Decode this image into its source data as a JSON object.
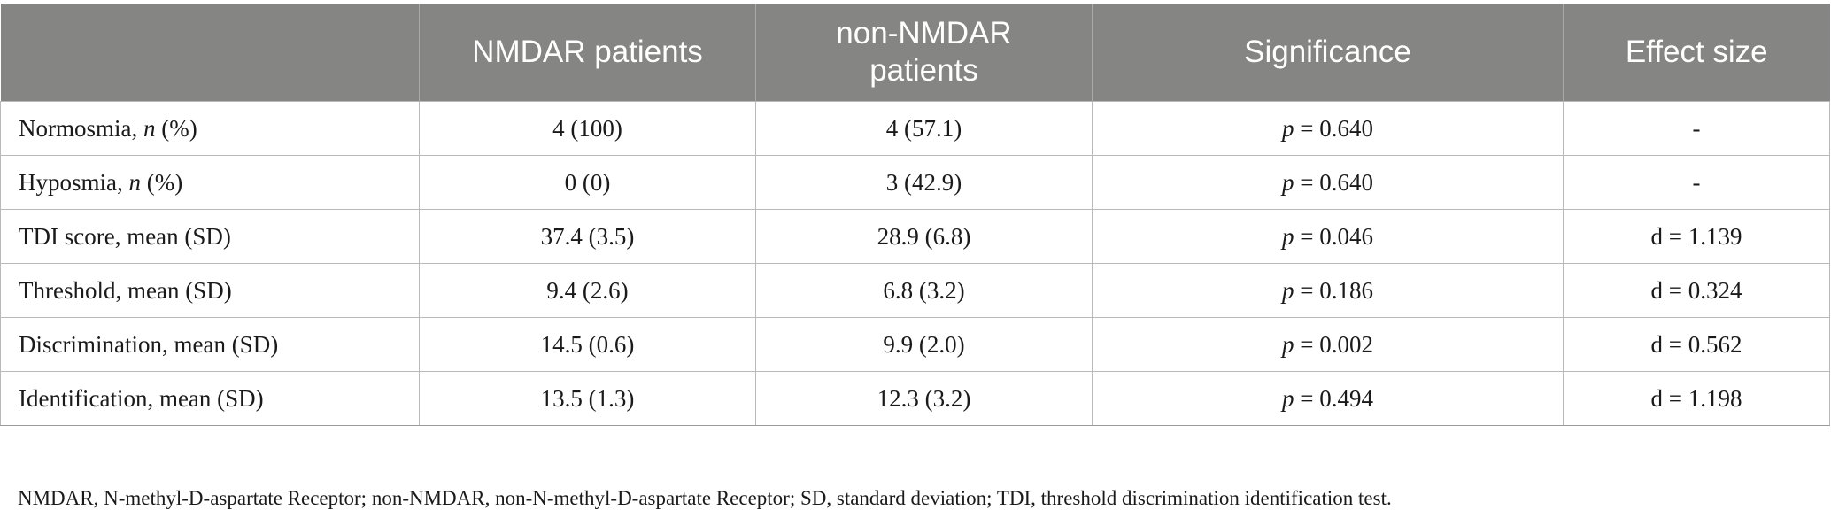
{
  "table": {
    "headers": [
      "",
      "NMDAR patients",
      "non-NMDAR\npatients",
      "Significance",
      "Effect size"
    ],
    "rows": [
      {
        "label_pre": "Normosmia, ",
        "label_italic": "n",
        "label_post": " (%)",
        "nmdar": "4 (100)",
        "non_nmdar": "4 (57.1)",
        "sig_p": "p",
        "sig_val": " = 0.640",
        "effect": "-"
      },
      {
        "label_pre": "Hyposmia, ",
        "label_italic": "n",
        "label_post": " (%)",
        "nmdar": "0 (0)",
        "non_nmdar": "3 (42.9)",
        "sig_p": "p",
        "sig_val": " = 0.640",
        "effect": "-"
      },
      {
        "label_pre": "TDI score, mean (SD)",
        "label_italic": "",
        "label_post": "",
        "nmdar": "37.4 (3.5)",
        "non_nmdar": "28.9 (6.8)",
        "sig_p": "p",
        "sig_val": " = 0.046",
        "effect": "d = 1.139"
      },
      {
        "label_pre": "Threshold, mean (SD)",
        "label_italic": "",
        "label_post": "",
        "nmdar": "9.4 (2.6)",
        "non_nmdar": "6.8 (3.2)",
        "sig_p": "p",
        "sig_val": " = 0.186",
        "effect": "d = 0.324"
      },
      {
        "label_pre": "Discrimination, mean (SD)",
        "label_italic": "",
        "label_post": "",
        "nmdar": "14.5 (0.6)",
        "non_nmdar": "9.9 (2.0)",
        "sig_p": "p",
        "sig_val": " = 0.002",
        "effect": "d = 0.562"
      },
      {
        "label_pre": "Identification, mean (SD)",
        "label_italic": "",
        "label_post": "",
        "nmdar": "13.5 (1.3)",
        "non_nmdar": "12.3 (3.2)",
        "sig_p": "p",
        "sig_val": " = 0.494",
        "effect": "d = 1.198"
      }
    ]
  },
  "footnote": "NMDAR, N-methyl-D-aspartate Receptor; non-NMDAR, non-N-methyl-D-aspartate Receptor; SD, standard deviation; TDI, threshold discrimination identification test.",
  "colors": {
    "header_bg": "#858684",
    "header_text": "#ffffff",
    "grid": "#b9b9b9"
  }
}
